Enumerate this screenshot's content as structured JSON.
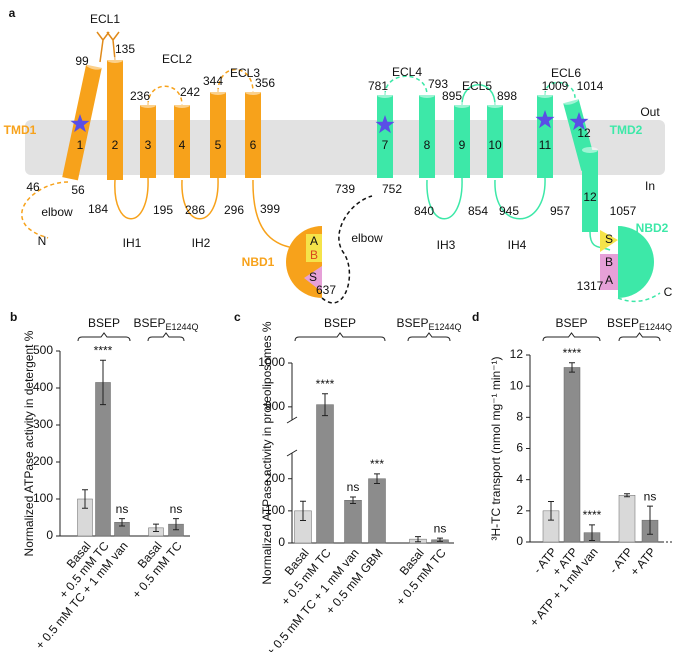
{
  "diagram": {
    "panel_label": "a",
    "loops": [
      "ECL1",
      "ECL2",
      "ECL3",
      "ECL4",
      "ECL5",
      "ECL6",
      "IH1",
      "IH2",
      "IH3",
      "IH4"
    ],
    "domains": [
      "TMD1",
      "TMD2",
      "NBD1",
      "NBD2"
    ],
    "membrane": [
      "Out",
      "In"
    ],
    "termini": [
      "N",
      "C"
    ],
    "elbow": [
      "elbow",
      "elbow"
    ],
    "helices": [
      "1",
      "2",
      "3",
      "4",
      "5",
      "6",
      "7",
      "8",
      "9",
      "10",
      "11",
      "12",
      "12"
    ],
    "residues": [
      "99",
      "135",
      "236",
      "242",
      "344",
      "356",
      "781",
      "793",
      "895",
      "898",
      "1009",
      "1014",
      "46",
      "56",
      "184",
      "195",
      "286",
      "296",
      "399",
      "739",
      "752",
      "840",
      "854",
      "945",
      "957",
      "1057",
      "637",
      "1317"
    ],
    "motifs": [
      "A",
      "B",
      "S",
      "S",
      "B",
      "A"
    ]
  },
  "chart_data": [
    {
      "type": "bar",
      "panel_label": "b",
      "ylabel": "Normalized ATPase activity in detergent %",
      "groups": [
        {
          "name": "BSEP"
        },
        {
          "name": "BSEP",
          "subscript": "E1244Q"
        }
      ],
      "categories": [
        "Basal",
        "+ 0.5 mM TC",
        "+ 0.5 mM TC + 1 mM van",
        "Basal",
        "+ 0.5 mM TC"
      ],
      "values": [
        100,
        415,
        37,
        22,
        32
      ],
      "errors": [
        25,
        60,
        10,
        10,
        15
      ],
      "colors": [
        "#d9d9d9",
        "#8c8c8c",
        "#8c8c8c",
        "#d9d9d9",
        "#8c8c8c"
      ],
      "annotations": [
        null,
        "****",
        "ns",
        null,
        "ns"
      ],
      "ylim": [
        0,
        500
      ],
      "yticks": [
        0,
        100,
        200,
        300,
        400,
        500
      ]
    },
    {
      "type": "bar",
      "panel_label": "c",
      "ylabel": "Normalized ATPase activity in proteoliposomes %",
      "groups": [
        {
          "name": "BSEP"
        },
        {
          "name": "BSEP",
          "subscript": "E1244Q"
        }
      ],
      "categories": [
        "Basal",
        "+ 0.5 mM TC",
        "+ 0.5 mM TC + 1 mM van",
        "+ 0.5 mM GBM",
        "Basal",
        "+ 0.5 mM TC"
      ],
      "values": [
        100,
        905,
        133,
        200,
        12,
        10
      ],
      "errors": [
        30,
        25,
        10,
        15,
        8,
        5
      ],
      "colors": [
        "#d9d9d9",
        "#8c8c8c",
        "#8c8c8c",
        "#8c8c8c",
        "#d9d9d9",
        "#8c8c8c"
      ],
      "annotations": [
        null,
        "****",
        "ns",
        "***",
        null,
        "ns"
      ],
      "ylim": [
        0,
        1000
      ],
      "ybreak": [
        280,
        870
      ],
      "yticks": [
        0,
        100,
        200,
        900,
        1000
      ]
    },
    {
      "type": "bar",
      "panel_label": "d",
      "ylabel": "³H-TC transport (nmol mg⁻¹ min⁻¹)",
      "groups": [
        {
          "name": "BSEP"
        },
        {
          "name": "BSEP",
          "subscript": "E1244Q"
        }
      ],
      "categories": [
        "- ATP",
        "+ ATP",
        "+ ATP + 1 mM van",
        "- ATP",
        "+ ATP"
      ],
      "values": [
        2.0,
        11.2,
        0.6,
        3.0,
        1.4
      ],
      "errors": [
        0.6,
        0.3,
        0.5,
        0.1,
        0.9
      ],
      "colors": [
        "#d9d9d9",
        "#8c8c8c",
        "#8c8c8c",
        "#d9d9d9",
        "#8c8c8c"
      ],
      "annotations": [
        null,
        "****",
        "****",
        null,
        "ns"
      ],
      "ylim": [
        0,
        12
      ],
      "yticks": [
        0,
        2,
        4,
        6,
        8,
        10,
        12
      ],
      "baseline": "dotted"
    }
  ]
}
